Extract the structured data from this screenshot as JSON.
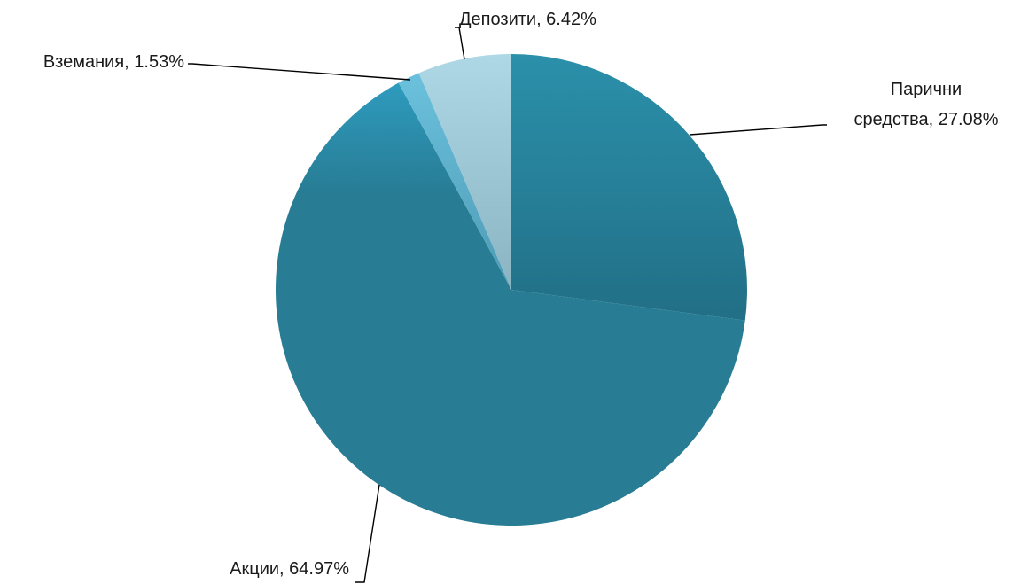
{
  "chart_data": {
    "type": "pie",
    "title": "",
    "slices": [
      {
        "label": "Парични средства",
        "value": 27.08,
        "display": "Парични средства, 27.08%",
        "color": "#2A7A93",
        "line1": "Парични",
        "line2": "средства, 27.08%"
      },
      {
        "label": "Акции",
        "value": 64.97,
        "display": "Акции, 64.97%",
        "color": "#297C94"
      },
      {
        "label": "Вземания",
        "value": 1.53,
        "display": "Вземания, 1.53%",
        "color": "#5FB3CF"
      },
      {
        "label": "Депозити",
        "value": 6.42,
        "display": "Депозити, 6.42%",
        "color": "#9FCBDA"
      }
    ],
    "start_angle": "12 o'clock",
    "direction": "clockwise",
    "legend": "none",
    "data_labels": "outside with leader lines"
  }
}
